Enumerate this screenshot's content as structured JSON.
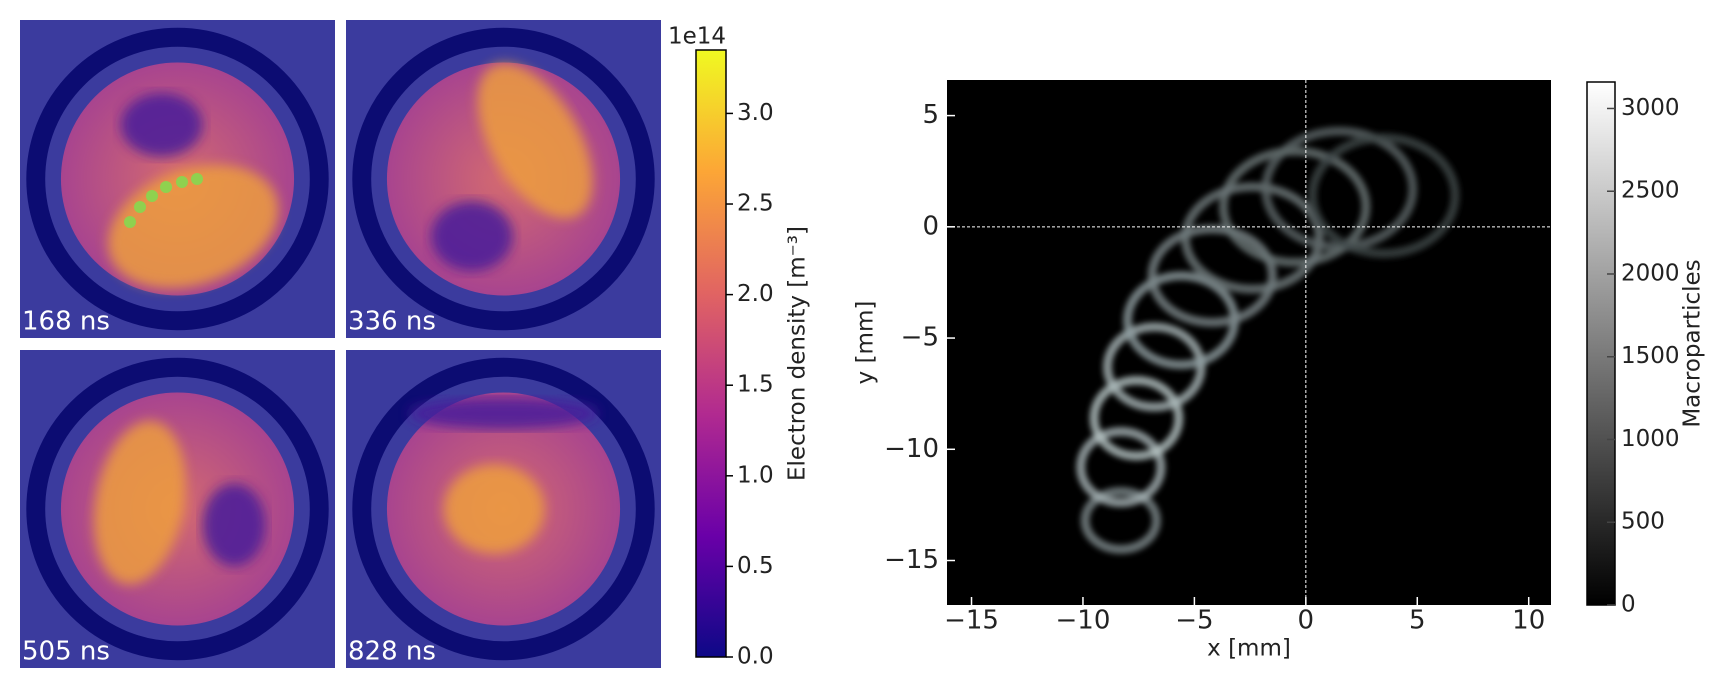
{
  "chart_data": [
    {
      "type": "image_grid",
      "panels": [
        {
          "label": "168 ns"
        },
        {
          "label": "336 ns"
        },
        {
          "label": "505 ns"
        },
        {
          "label": "828 ns"
        }
      ],
      "colorbar": {
        "label": "Electron density [m⁻³]",
        "offset_label": "1e14",
        "clim": [
          0,
          3.35
        ],
        "ticks": [
          {
            "value": 0,
            "label": "0.0"
          },
          {
            "value": 0.5,
            "label": "0.5"
          },
          {
            "value": 1,
            "label": "1.0"
          },
          {
            "value": 1.5,
            "label": "1.5"
          },
          {
            "value": 2,
            "label": "2.0"
          },
          {
            "value": 2.5,
            "label": "2.5"
          },
          {
            "value": 3,
            "label": "3.0"
          }
        ]
      }
    },
    {
      "type": "heatmap",
      "xlabel": "x [mm]",
      "ylabel": "y [mm]",
      "xlim": [
        -16.1,
        11
      ],
      "ylim": [
        -17,
        6.6
      ],
      "xticks": [
        {
          "value": -15,
          "label": "−15"
        },
        {
          "value": -10,
          "label": "−10"
        },
        {
          "value": -5,
          "label": "−5"
        },
        0,
        5,
        10
      ],
      "yticks": [
        {
          "value": -15,
          "label": "−15"
        },
        {
          "value": -10,
          "label": "−10"
        },
        {
          "value": -5,
          "label": "−5"
        },
        0,
        5
      ],
      "reference_lines": {
        "x": 0,
        "y": 0
      },
      "colorbar": {
        "label": "Macroparticles",
        "clim": [
          0,
          3160
        ],
        "ticks": [
          0,
          500,
          1000,
          1500,
          2000,
          2500,
          3000
        ]
      }
    }
  ]
}
